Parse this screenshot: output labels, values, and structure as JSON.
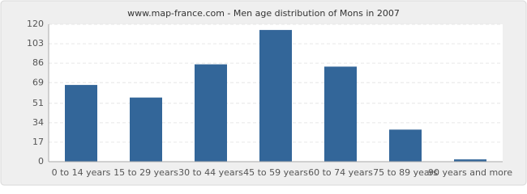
{
  "chart_data": {
    "type": "bar",
    "title": "www.map-france.com - Men age distribution of Mons in 2007",
    "categories": [
      "0 to 14 years",
      "15 to 29 years",
      "30 to 44 years",
      "45 to 59 years",
      "60 to 74 years",
      "75 to 89 years",
      "90 years and more"
    ],
    "values": [
      67,
      56,
      85,
      115,
      83,
      28,
      2
    ],
    "color": "#336699",
    "ylim": [
      0,
      120
    ],
    "yticks": [
      0,
      17,
      34,
      51,
      69,
      86,
      103,
      120
    ],
    "grid": true
  }
}
